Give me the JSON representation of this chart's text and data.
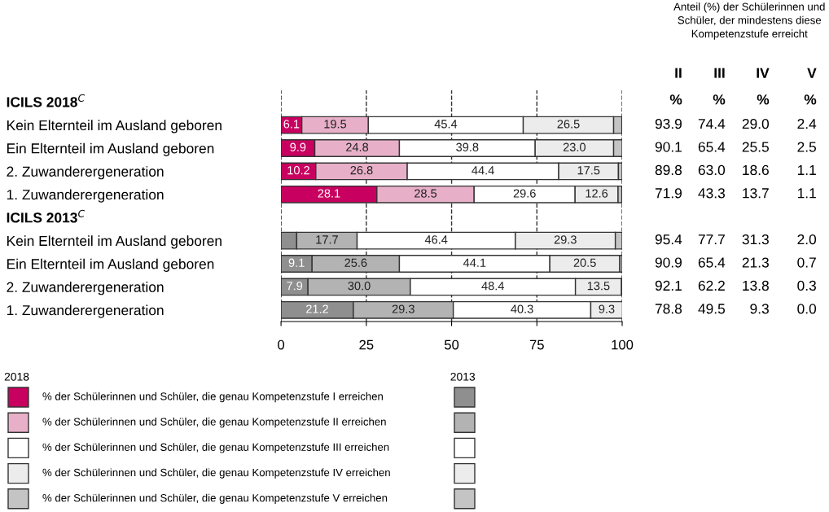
{
  "chart_data": {
    "type": "bar",
    "orientation": "horizontal",
    "stacked": true,
    "categories": [
      "ICILS 2018$^{C}$",
      "Kein Elternteil im Ausland geboren",
      "Ein Elternteil im Ausland geboren",
      "2. Zuwanderergeneration",
      "1. Zuwanderergeneration",
      "ICILS 2013$^{C}$",
      "Kein Elternteil im Ausland geboren",
      "Ein Elternteil im Ausland geboren",
      "2. Zuwanderergeneration",
      "1. Zuwanderergeneration"
    ],
    "series": [
      {
        "name": "% der Schülerinnen und Schüler, die genau Kompetenzstufe I erreichen",
        "color": "#c8005f",
        "colors": [
          null,
          "#c8005f",
          "#c8005f",
          "#c8005f",
          "#c8005f",
          null,
          "#8f8f8f",
          "#8f8f8f",
          "#8f8f8f",
          "#8f8f8f"
        ],
        "values": [
          null,
          6.1,
          9.9,
          10.2,
          28.1,
          null,
          4.6,
          9.1,
          7.9,
          21.2
        ],
        "value_labels": [
          null,
          "6.1",
          "9.9",
          "10.2",
          "28.1",
          null,
          null,
          "9.1",
          "7.9",
          "21.2"
        ]
      },
      {
        "name": "% der Schülerinnen und Schüler, die genau Kompetenzstufe II erreichen",
        "color": "#e8b0c8",
        "colors": [
          null,
          "#e8b0c8",
          "#e8b0c8",
          "#e8b0c8",
          "#e8b0c8",
          null,
          "#b3b3b3",
          "#b3b3b3",
          "#b3b3b3",
          "#b3b3b3"
        ],
        "values": [
          null,
          19.5,
          24.8,
          26.8,
          28.5,
          null,
          17.7,
          25.6,
          30.0,
          29.3
        ],
        "value_labels": [
          null,
          "19.5",
          "24.8",
          "26.8",
          "28.5",
          null,
          "17.7",
          "25.6",
          "30.0",
          "29.3"
        ]
      },
      {
        "name": "% der Schülerinnen und Schüler, die genau Kompetenzstufe III erreichen",
        "color": "#ffffff",
        "colors": [
          null,
          "#ffffff",
          "#ffffff",
          "#ffffff",
          "#ffffff",
          null,
          "#ffffff",
          "#ffffff",
          "#ffffff",
          "#ffffff"
        ],
        "values": [
          null,
          45.4,
          39.8,
          44.4,
          29.6,
          null,
          46.4,
          44.1,
          48.4,
          40.3
        ],
        "value_labels": [
          null,
          "45.4",
          "39.8",
          "44.4",
          "29.6",
          null,
          "46.4",
          "44.1",
          "48.4",
          "40.3"
        ]
      },
      {
        "name": "% der Schülerinnen und Schüler, die genau Kompetenzstufe IV erreichen",
        "color": "#ececec",
        "colors": [
          null,
          "#ececec",
          "#ececec",
          "#ececec",
          "#ececec",
          null,
          "#ececec",
          "#ececec",
          "#ececec",
          "#ececec"
        ],
        "values": [
          null,
          26.5,
          23.0,
          17.5,
          12.6,
          null,
          29.3,
          20.5,
          13.5,
          9.3
        ],
        "value_labels": [
          null,
          "26.5",
          "23.0",
          "17.5",
          "12.6",
          null,
          "29.3",
          "20.5",
          "13.5",
          "9.3"
        ]
      },
      {
        "name": "% der Schülerinnen und Schüler, die genau Kompetenzstufe V erreichen",
        "color": "#c4c4c4",
        "colors": [
          null,
          "#c4c4c4",
          "#c4c4c4",
          "#c4c4c4",
          "#c4c4c4",
          null,
          "#c4c4c4",
          "#c4c4c4",
          "#c4c4c4",
          "#c4c4c4"
        ],
        "values": [
          null,
          2.4,
          2.5,
          1.1,
          1.1,
          null,
          2.0,
          0.7,
          0.3,
          0.0
        ],
        "value_labels": [
          null,
          null,
          null,
          null,
          null,
          null,
          null,
          null,
          null,
          null
        ]
      }
    ],
    "xlim": [
      0,
      100
    ],
    "xticks": [
      0,
      25,
      50,
      75,
      100
    ],
    "grid": "x",
    "line_style": "dashed",
    "tick_labels": "x",
    "legend": "bottom",
    "legend_title": "2018",
    "annotations": [
      "Anteil (%) der Schülerinnen und\nSchüler, der mindestens diese\nKompetenzstufe erreicht",
      "II",
      "III",
      "IV",
      "V",
      "%",
      "%",
      "%",
      "%",
      "93.9",
      "74.4",
      "29.0",
      "2.4",
      "90.1",
      "65.4",
      "25.5",
      "2.5",
      "89.8",
      "63.0",
      "18.6",
      "1.1",
      "71.9",
      "43.3",
      "13.7",
      "1.1",
      "95.4",
      "77.7",
      "31.3",
      "2.0",
      "90.9",
      "65.4",
      "21.3",
      "0.7",
      "92.1",
      "62.2",
      "13.8",
      "0.3",
      "78.8",
      "49.5",
      "9.3",
      "0.0",
      "2013"
    ]
  }
}
